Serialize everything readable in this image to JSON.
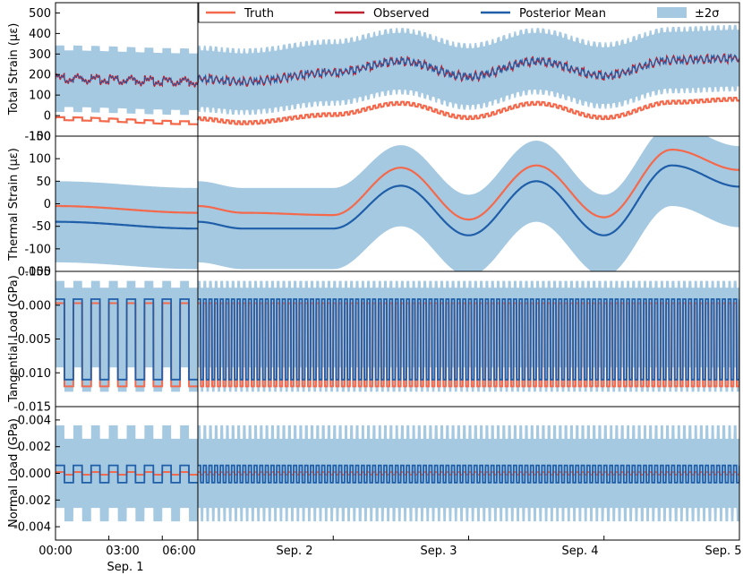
{
  "colors": {
    "truth": "#f4694b",
    "observed": "#c0202f",
    "posterior": "#1f5ea8",
    "band": "#a6c9e2"
  },
  "legend": {
    "truth": "Truth",
    "observed": "Observed",
    "posterior": "Posterior Mean",
    "band": "±2σ"
  },
  "x_axis": {
    "left_ticks": [
      "00:00",
      "03:00",
      "06:00"
    ],
    "left_date": "Sep. 1",
    "right_ticks": [
      "Sep. 2",
      "Sep. 3",
      "Sep. 4",
      "Sep. 5"
    ]
  },
  "chart_data": [
    {
      "type": "line",
      "ylabel": "Total Strain (με)",
      "ylim": [
        -100,
        550
      ],
      "yticks": [
        "-100",
        "0",
        "100",
        "200",
        "300",
        "400",
        "500"
      ],
      "x": [
        "Sep. 1 00:00",
        "Sep. 1 08:00",
        "Sep. 2 00:00",
        "Sep. 2 12:00",
        "Sep. 3 00:00",
        "Sep. 3 12:00",
        "Sep. 4 00:00",
        "Sep. 4 12:00",
        "Sep. 5 00:00"
      ],
      "series": [
        {
          "name": "Truth",
          "values": [
            -15,
            -35,
            5,
            60,
            -10,
            60,
            -10,
            65,
            80
          ]
        },
        {
          "name": "Observed",
          "values": [
            180,
            165,
            210,
            265,
            190,
            265,
            195,
            270,
            280
          ]
        },
        {
          "name": "Posterior Mean",
          "values": [
            180,
            165,
            210,
            265,
            190,
            265,
            195,
            270,
            280
          ]
        }
      ],
      "band_halfwidth": 150
    },
    {
      "type": "line",
      "ylabel": "Thermal Strain (με)",
      "ylim": [
        -150,
        150
      ],
      "yticks": [
        "-150",
        "-100",
        "-50",
        "0",
        "50",
        "100",
        "150"
      ],
      "x": [
        "Sep. 1 00:00",
        "Sep. 1 08:00",
        "Sep. 2 00:00",
        "Sep. 2 12:00",
        "Sep. 3 00:00",
        "Sep. 3 12:00",
        "Sep. 4 00:00",
        "Sep. 4 12:00",
        "Sep. 5 00:00"
      ],
      "series": [
        {
          "name": "Truth",
          "values": [
            -5,
            -20,
            -25,
            80,
            -35,
            85,
            -30,
            120,
            75
          ]
        },
        {
          "name": "Posterior Mean",
          "values": [
            -40,
            -55,
            -55,
            40,
            -70,
            50,
            -70,
            85,
            38
          ]
        }
      ],
      "band_halfwidth": 90
    },
    {
      "type": "line",
      "ylabel": "Tangential Load (GPa)",
      "ylim": [
        -0.015,
        0.005
      ],
      "yticks": [
        "-0.015",
        "-0.010",
        "-0.005",
        "0.000",
        "0.005"
      ],
      "series": [
        {
          "name": "Truth",
          "levels": [
            0.0003,
            -0.012
          ]
        },
        {
          "name": "Posterior Mean",
          "levels": [
            0.0009,
            -0.011
          ]
        }
      ],
      "band_range": [
        -0.0128,
        0.0036
      ]
    },
    {
      "type": "line",
      "ylabel": "Normal Load (GPa)",
      "ylim": [
        -0.005,
        0.005
      ],
      "yticks": [
        "-0.004",
        "-0.002",
        "0.000",
        "0.002",
        "0.004"
      ],
      "series": [
        {
          "name": "Truth",
          "levels": [
            0.0001,
            -0.0001
          ]
        },
        {
          "name": "Posterior Mean",
          "levels": [
            0.0006,
            -0.0007
          ]
        }
      ],
      "band_range": [
        -0.0036,
        0.0036
      ]
    }
  ]
}
